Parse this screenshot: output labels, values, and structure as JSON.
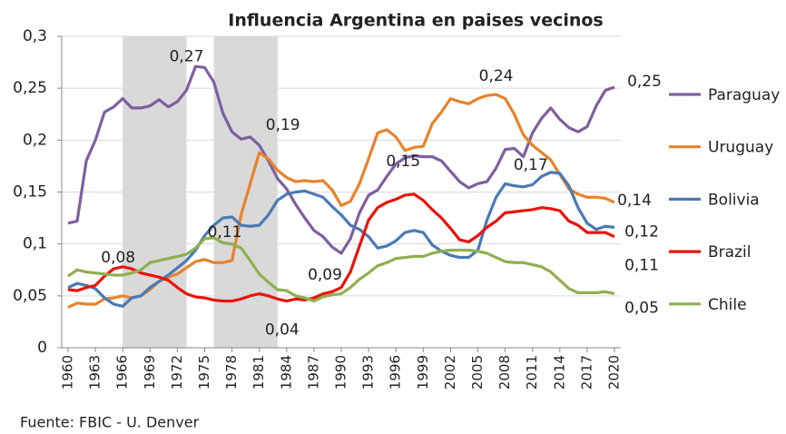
{
  "chart_data": {
    "type": "line",
    "title": "Influencia Argentina en paises vecinos",
    "footnote": "Fuente: FBIC - U. Denver",
    "x": [
      1960,
      1961,
      1962,
      1963,
      1964,
      1965,
      1966,
      1967,
      1968,
      1969,
      1970,
      1971,
      1972,
      1973,
      1974,
      1975,
      1976,
      1977,
      1978,
      1979,
      1980,
      1981,
      1982,
      1983,
      1984,
      1985,
      1986,
      1987,
      1988,
      1989,
      1990,
      1991,
      1992,
      1993,
      1994,
      1995,
      1996,
      1997,
      1998,
      1999,
      2000,
      2001,
      2002,
      2003,
      2004,
      2005,
      2006,
      2007,
      2008,
      2009,
      2010,
      2011,
      2012,
      2013,
      2014,
      2015,
      2016,
      2017,
      2018,
      2019,
      2020
    ],
    "xlim": [
      1960,
      2020
    ],
    "xticks": [
      1960,
      1963,
      1966,
      1969,
      1972,
      1975,
      1978,
      1981,
      1984,
      1987,
      1990,
      1993,
      1996,
      1999,
      2002,
      2005,
      2008,
      2011,
      2014,
      2017,
      2020
    ],
    "ylim": [
      0,
      0.3
    ],
    "yticks": [
      0,
      {
        "value": 0.05,
        "label": "0,05"
      },
      {
        "value": 0.1,
        "label": "0,1"
      },
      {
        "value": 0.15,
        "label": "0,15"
      },
      {
        "value": 0.2,
        "label": "0,2"
      },
      {
        "value": 0.25,
        "label": "0,25"
      },
      {
        "value": 0.3,
        "label": "0,3"
      }
    ],
    "grid": true,
    "legend": "right",
    "shaded_ranges": [
      [
        1966,
        1973
      ],
      [
        1976,
        1983
      ]
    ],
    "shade_color": "#d9d9d9",
    "series": [
      {
        "name": "Paraguay",
        "color": "#7e5fa0",
        "values": [
          0.12,
          0.122,
          0.18,
          0.2,
          0.227,
          0.232,
          0.24,
          0.231,
          0.231,
          0.233,
          0.239,
          0.232,
          0.237,
          0.248,
          0.271,
          0.27,
          0.256,
          0.226,
          0.208,
          0.201,
          0.203,
          0.195,
          0.18,
          0.163,
          0.153,
          0.138,
          0.125,
          0.113,
          0.107,
          0.097,
          0.091,
          0.105,
          0.13,
          0.147,
          0.152,
          0.165,
          0.177,
          0.183,
          0.185,
          0.184,
          0.184,
          0.18,
          0.17,
          0.16,
          0.154,
          0.158,
          0.16,
          0.173,
          0.191,
          0.192,
          0.184,
          0.207,
          0.221,
          0.231,
          0.22,
          0.212,
          0.208,
          0.213,
          0.233,
          0.248,
          0.251
        ]
      },
      {
        "name": "Uruguay",
        "color": "#e8822a",
        "values": [
          0.039,
          0.043,
          0.042,
          0.042,
          0.047,
          0.048,
          0.05,
          0.048,
          0.05,
          0.056,
          0.064,
          0.068,
          0.071,
          0.077,
          0.083,
          0.085,
          0.082,
          0.082,
          0.084,
          0.128,
          0.158,
          0.188,
          0.182,
          0.171,
          0.164,
          0.16,
          0.161,
          0.16,
          0.161,
          0.152,
          0.137,
          0.141,
          0.158,
          0.182,
          0.207,
          0.21,
          0.203,
          0.19,
          0.193,
          0.194,
          0.216,
          0.227,
          0.24,
          0.237,
          0.235,
          0.24,
          0.243,
          0.244,
          0.24,
          0.225,
          0.205,
          0.195,
          0.188,
          0.181,
          0.167,
          0.153,
          0.148,
          0.145,
          0.145,
          0.144,
          0.14
        ]
      },
      {
        "name": "Bolivia",
        "color": "#4a7ab5",
        "values": [
          0.058,
          0.062,
          0.06,
          0.057,
          0.048,
          0.042,
          0.04,
          0.048,
          0.05,
          0.058,
          0.064,
          0.07,
          0.077,
          0.084,
          0.094,
          0.108,
          0.118,
          0.125,
          0.126,
          0.118,
          0.117,
          0.118,
          0.128,
          0.142,
          0.148,
          0.15,
          0.151,
          0.148,
          0.145,
          0.136,
          0.128,
          0.118,
          0.114,
          0.107,
          0.096,
          0.098,
          0.103,
          0.111,
          0.113,
          0.111,
          0.099,
          0.093,
          0.089,
          0.087,
          0.087,
          0.094,
          0.123,
          0.145,
          0.158,
          0.156,
          0.155,
          0.157,
          0.165,
          0.169,
          0.168,
          0.156,
          0.135,
          0.12,
          0.114,
          0.117,
          0.116
        ]
      },
      {
        "name": "Brazil",
        "color": "#e8140c",
        "values": [
          0.056,
          0.055,
          0.058,
          0.06,
          0.069,
          0.076,
          0.078,
          0.076,
          0.072,
          0.07,
          0.068,
          0.065,
          0.058,
          0.052,
          0.049,
          0.048,
          0.046,
          0.045,
          0.045,
          0.047,
          0.05,
          0.052,
          0.05,
          0.047,
          0.045,
          0.047,
          0.046,
          0.048,
          0.052,
          0.054,
          0.058,
          0.073,
          0.098,
          0.123,
          0.135,
          0.14,
          0.143,
          0.147,
          0.148,
          0.142,
          0.133,
          0.125,
          0.115,
          0.104,
          0.102,
          0.108,
          0.116,
          0.122,
          0.13,
          0.131,
          0.132,
          0.133,
          0.135,
          0.134,
          0.132,
          0.122,
          0.118,
          0.111,
          0.111,
          0.111,
          0.107
        ]
      },
      {
        "name": "Chile",
        "color": "#8fb04f",
        "values": [
          0.069,
          0.075,
          0.073,
          0.072,
          0.071,
          0.07,
          0.07,
          0.072,
          0.075,
          0.082,
          0.084,
          0.086,
          0.088,
          0.09,
          0.096,
          0.105,
          0.106,
          0.101,
          0.1,
          0.096,
          0.084,
          0.071,
          0.063,
          0.056,
          0.055,
          0.05,
          0.048,
          0.045,
          0.049,
          0.051,
          0.052,
          0.058,
          0.066,
          0.072,
          0.079,
          0.082,
          0.086,
          0.087,
          0.088,
          0.088,
          0.091,
          0.093,
          0.094,
          0.094,
          0.094,
          0.093,
          0.091,
          0.087,
          0.083,
          0.082,
          0.082,
          0.08,
          0.078,
          0.073,
          0.065,
          0.057,
          0.053,
          0.053,
          0.053,
          0.054,
          0.052
        ]
      }
    ],
    "annotations": [
      {
        "label": "0,27",
        "x": 1975,
        "y": 0.27
      },
      {
        "label": "0,19",
        "x": 1981,
        "y": 0.188
      },
      {
        "label": "0,08",
        "x": 1966,
        "y": 0.078
      },
      {
        "label": "0,11",
        "x": 1976,
        "y": 0.106
      },
      {
        "label": "0,04",
        "x": 1984,
        "y": 0.045
      },
      {
        "label": "0,09",
        "x": 1990,
        "y": 0.091
      },
      {
        "label": "0,15",
        "x": 1998,
        "y": 0.148
      },
      {
        "label": "0,24",
        "x": 2007,
        "y": 0.244
      },
      {
        "label": "0,17",
        "x": 2013,
        "y": 0.169
      },
      {
        "label": "0,25",
        "x": 2020,
        "y": 0.251
      },
      {
        "label": "0,14",
        "x": 2020,
        "y": 0.14
      },
      {
        "label": "0,12",
        "x": 2020,
        "y": 0.116
      },
      {
        "label": "0,11",
        "x": 2020,
        "y": 0.107
      },
      {
        "label": "0,05",
        "x": 2020,
        "y": 0.052
      }
    ]
  }
}
